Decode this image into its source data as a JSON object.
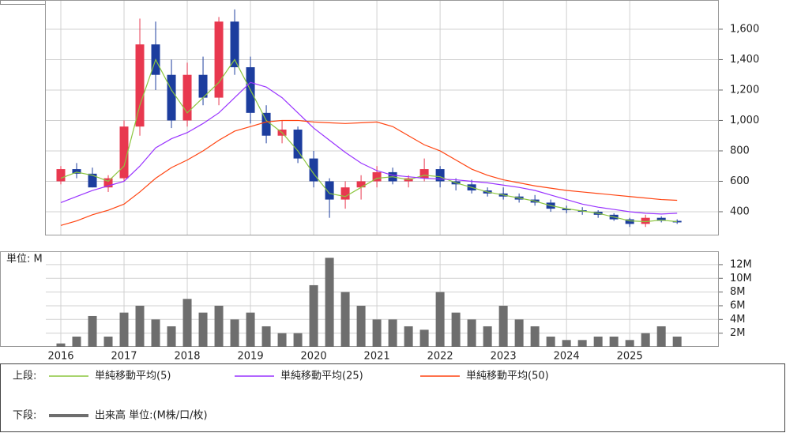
{
  "chart_data": [
    {
      "type": "candlestick",
      "x": [
        2016.0,
        2016.25,
        2016.5,
        2016.75,
        2017.0,
        2017.25,
        2017.5,
        2017.75,
        2018.0,
        2018.25,
        2018.5,
        2018.75,
        2019.0,
        2019.25,
        2019.5,
        2019.75,
        2020.0,
        2020.25,
        2020.5,
        2020.75,
        2021.0,
        2021.25,
        2021.5,
        2021.75,
        2022.0,
        2022.25,
        2022.5,
        2022.75,
        2023.0,
        2023.25,
        2023.5,
        2023.75,
        2024.0,
        2024.25,
        2024.5,
        2024.75,
        2025.0,
        2025.25,
        2025.5,
        2025.75
      ],
      "open": [
        600,
        680,
        650,
        560,
        620,
        960,
        1500,
        1300,
        1000,
        1300,
        1150,
        1650,
        1350,
        1050,
        900,
        940,
        750,
        600,
        480,
        560,
        600,
        660,
        600,
        620,
        680,
        600,
        580,
        540,
        520,
        500,
        480,
        460,
        420,
        410,
        400,
        380,
        350,
        320,
        360,
        340
      ],
      "high": [
        700,
        720,
        690,
        640,
        1000,
        1670,
        1650,
        1400,
        1380,
        1420,
        1680,
        1730,
        1420,
        1100,
        1000,
        960,
        800,
        620,
        600,
        640,
        700,
        690,
        640,
        750,
        700,
        620,
        610,
        560,
        560,
        520,
        510,
        480,
        440,
        430,
        410,
        390,
        360,
        380,
        370,
        350
      ],
      "low": [
        580,
        620,
        560,
        530,
        600,
        900,
        1200,
        950,
        960,
        1100,
        1100,
        1300,
        980,
        850,
        850,
        720,
        560,
        360,
        420,
        480,
        560,
        580,
        560,
        600,
        560,
        540,
        520,
        500,
        480,
        460,
        440,
        400,
        390,
        380,
        360,
        340,
        300,
        300,
        330,
        320
      ],
      "close": [
        680,
        650,
        560,
        620,
        960,
        1500,
        1300,
        1000,
        1300,
        1150,
        1650,
        1350,
        1050,
        900,
        940,
        750,
        600,
        480,
        560,
        600,
        660,
        600,
        620,
        680,
        600,
        580,
        540,
        520,
        500,
        480,
        460,
        420,
        410,
        400,
        380,
        350,
        320,
        360,
        340,
        330
      ],
      "up_color": "#e8384f",
      "down_color": "#1c3d9e",
      "lines": [
        {
          "name": "単純移動平均(5)",
          "color": "#8cc63f",
          "values": [
            620,
            660,
            640,
            600,
            700,
            1100,
            1400,
            1200,
            1050,
            1150,
            1250,
            1400,
            1200,
            1000,
            920,
            800,
            650,
            520,
            500,
            560,
            620,
            630,
            610,
            640,
            630,
            590,
            560,
            530,
            510,
            490,
            470,
            440,
            420,
            405,
            390,
            365,
            340,
            335,
            345,
            335
          ]
        },
        {
          "name": "単純移動平均(25)",
          "color": "#9933ff",
          "values": [
            460,
            500,
            540,
            570,
            600,
            700,
            820,
            880,
            920,
            980,
            1050,
            1150,
            1250,
            1220,
            1150,
            1050,
            950,
            870,
            790,
            720,
            670,
            640,
            630,
            620,
            615,
            610,
            600,
            590,
            575,
            560,
            540,
            510,
            480,
            450,
            430,
            415,
            400,
            390,
            385,
            390
          ]
        },
        {
          "name": "単純移動平均(50)",
          "color": "#ff4411",
          "values": [
            310,
            340,
            380,
            410,
            450,
            530,
            620,
            690,
            740,
            800,
            870,
            930,
            960,
            990,
            1000,
            1000,
            990,
            985,
            980,
            985,
            990,
            960,
            900,
            840,
            800,
            740,
            680,
            640,
            610,
            590,
            570,
            555,
            540,
            530,
            520,
            510,
            500,
            490,
            480,
            475
          ]
        }
      ],
      "xlim": [
        2015.75,
        2026.41
      ],
      "ylim": [
        244,
        1792
      ],
      "yticks": [
        400,
        600,
        800,
        {
          "value": 1000,
          "label": "1,000"
        },
        {
          "value": 1200,
          "label": "1,200"
        },
        {
          "value": 1400,
          "label": "1,400"
        },
        {
          "value": 1600,
          "label": "1,600"
        }
      ],
      "legend_label": "上段:",
      "grid": true
    },
    {
      "type": "bar",
      "unit_label": "単位: M",
      "x": [
        2016.0,
        2016.25,
        2016.5,
        2016.75,
        2017.0,
        2017.25,
        2017.5,
        2017.75,
        2018.0,
        2018.25,
        2018.5,
        2018.75,
        2019.0,
        2019.25,
        2019.5,
        2019.75,
        2020.0,
        2020.25,
        2020.5,
        2020.75,
        2021.0,
        2021.25,
        2021.5,
        2021.75,
        2022.0,
        2022.25,
        2022.5,
        2022.75,
        2023.0,
        2023.25,
        2023.5,
        2023.75,
        2024.0,
        2024.25,
        2024.5,
        2024.75,
        2025.0,
        2025.25,
        2025.5,
        2025.75
      ],
      "values": [
        0.5,
        1.5,
        4.5,
        1.5,
        5,
        6,
        4,
        3,
        7,
        5,
        6,
        4,
        5,
        3,
        2,
        2,
        9,
        13,
        8,
        6,
        4,
        4,
        3,
        2.5,
        8,
        5,
        4,
        3,
        6,
        4,
        3,
        1.5,
        1,
        1,
        1.5,
        1.5,
        1,
        2,
        3,
        1.5
      ],
      "color": "#6e6e6e",
      "series_name": "出来高 単位:(M株/口/枚)",
      "legend_label": "下段:",
      "xlim": [
        2015.75,
        2026.41
      ],
      "xticks": [
        2016,
        2017,
        2018,
        2019,
        2020,
        2021,
        2022,
        2023,
        2024,
        2025
      ],
      "ylim": [
        0,
        13.95
      ],
      "yticks": [
        {
          "value": 2,
          "label": "2M"
        },
        {
          "value": 4,
          "label": "4M"
        },
        {
          "value": 6,
          "label": "6M"
        },
        {
          "value": 8,
          "label": "8M"
        },
        {
          "value": 10,
          "label": "10M"
        },
        {
          "value": 12,
          "label": "12M"
        }
      ],
      "grid": true
    }
  ]
}
